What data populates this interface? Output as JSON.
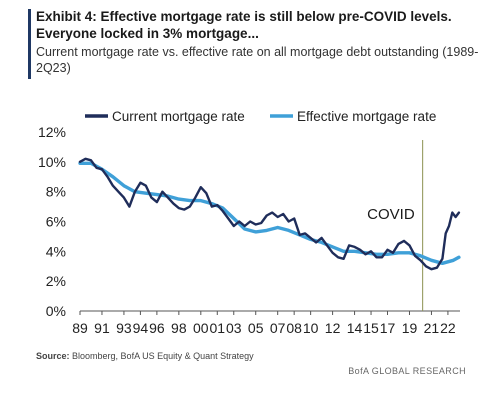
{
  "title": "Exhibit 4: Effective mortgage rate is still below pre-COVID levels. Everyone locked in 3% mortgage...",
  "subtitle": "Current mortgage rate vs. effective rate on all mortgage debt outstanding (1989-2Q23)",
  "source_label": "Source:",
  "source_text": "Bloomberg, BofA US Equity & Quant Strategy",
  "brand": "BofA GLOBAL RESEARCH",
  "colors": {
    "current": "#1f2d5a",
    "effective": "#3fa0d8",
    "annotation_line": "#8b9150",
    "accent": "#1f3864"
  },
  "chart_data": {
    "type": "line",
    "ylim": [
      0,
      12
    ],
    "xlim": [
      1989,
      2023.6
    ],
    "y_ticks": [
      0,
      2,
      4,
      6,
      8,
      10,
      12
    ],
    "y_tick_labels": [
      "0%",
      "2%",
      "4%",
      "6%",
      "8%",
      "10%",
      "12%"
    ],
    "x_ticks": [
      1989,
      1991,
      1993,
      1994.5,
      1996,
      1998,
      2000,
      2001.5,
      2003,
      2005,
      2007,
      2008.5,
      2010,
      2012,
      2014,
      2015.5,
      2017,
      2019,
      2021,
      2022.5
    ],
    "x_tick_labels": [
      "89",
      "91",
      "93",
      "94",
      "96",
      "98",
      "00",
      "01",
      "03",
      "05",
      "07",
      "08",
      "10",
      "12",
      "14",
      "15",
      "17",
      "19",
      "21",
      "22"
    ],
    "grid": false,
    "legend_position": "top",
    "annotation": {
      "label": "COVID",
      "x": 2020.2
    },
    "series": [
      {
        "name": "Current mortgage rate",
        "x": [
          1989,
          1989.5,
          1990,
          1990.5,
          1991,
          1991.5,
          1992,
          1992.5,
          1993,
          1993.5,
          1994,
          1994.5,
          1995,
          1995.5,
          1996,
          1996.5,
          1997,
          1997.5,
          1998,
          1998.5,
          1999,
          1999.5,
          2000,
          2000.5,
          2001,
          2001.5,
          2002,
          2002.5,
          2003,
          2003.5,
          2004,
          2004.5,
          2005,
          2005.5,
          2006,
          2006.5,
          2007,
          2007.5,
          2008,
          2008.5,
          2009,
          2009.5,
          2010,
          2010.5,
          2011,
          2011.5,
          2012,
          2012.5,
          2013,
          2013.5,
          2014,
          2014.5,
          2015,
          2015.5,
          2016,
          2016.5,
          2017,
          2017.5,
          2018,
          2018.5,
          2019,
          2019.5,
          2020,
          2020.5,
          2021,
          2021.5,
          2022,
          2022.3,
          2022.6,
          2022.9,
          2023.2,
          2023.5
        ],
        "values": [
          10.0,
          10.2,
          10.1,
          9.6,
          9.5,
          9.0,
          8.4,
          8.0,
          7.6,
          7.0,
          8.0,
          8.6,
          8.4,
          7.6,
          7.3,
          8.0,
          7.6,
          7.2,
          6.9,
          6.8,
          7.0,
          7.6,
          8.3,
          7.9,
          7.0,
          7.1,
          6.7,
          6.2,
          5.7,
          6.0,
          5.7,
          6.0,
          5.8,
          5.9,
          6.4,
          6.6,
          6.3,
          6.5,
          6.0,
          6.2,
          5.1,
          5.2,
          4.9,
          4.6,
          4.9,
          4.4,
          3.9,
          3.6,
          3.5,
          4.4,
          4.3,
          4.1,
          3.8,
          4.0,
          3.6,
          3.6,
          4.1,
          3.9,
          4.5,
          4.7,
          4.4,
          3.7,
          3.4,
          3.0,
          2.8,
          2.9,
          3.5,
          5.2,
          5.7,
          6.6,
          6.3,
          6.6
        ]
      },
      {
        "name": "Effective mortgage rate",
        "x": [
          1989,
          1990,
          1991,
          1992,
          1993,
          1994,
          1995,
          1996,
          1997,
          1998,
          1999,
          2000,
          2001,
          2002,
          2003,
          2004,
          2005,
          2006,
          2007,
          2008,
          2009,
          2010,
          2011,
          2012,
          2013,
          2014,
          2015,
          2016,
          2017,
          2018,
          2019,
          2020,
          2021,
          2021.5,
          2022,
          2022.5,
          2023,
          2023.5
        ],
        "values": [
          9.9,
          9.9,
          9.5,
          9.0,
          8.4,
          8.0,
          7.9,
          7.8,
          7.7,
          7.5,
          7.4,
          7.4,
          7.2,
          6.9,
          6.2,
          5.5,
          5.3,
          5.4,
          5.6,
          5.4,
          5.1,
          4.8,
          4.6,
          4.3,
          4.0,
          4.0,
          3.9,
          3.8,
          3.8,
          3.9,
          3.9,
          3.7,
          3.4,
          3.3,
          3.2,
          3.3,
          3.4,
          3.6
        ]
      }
    ]
  }
}
